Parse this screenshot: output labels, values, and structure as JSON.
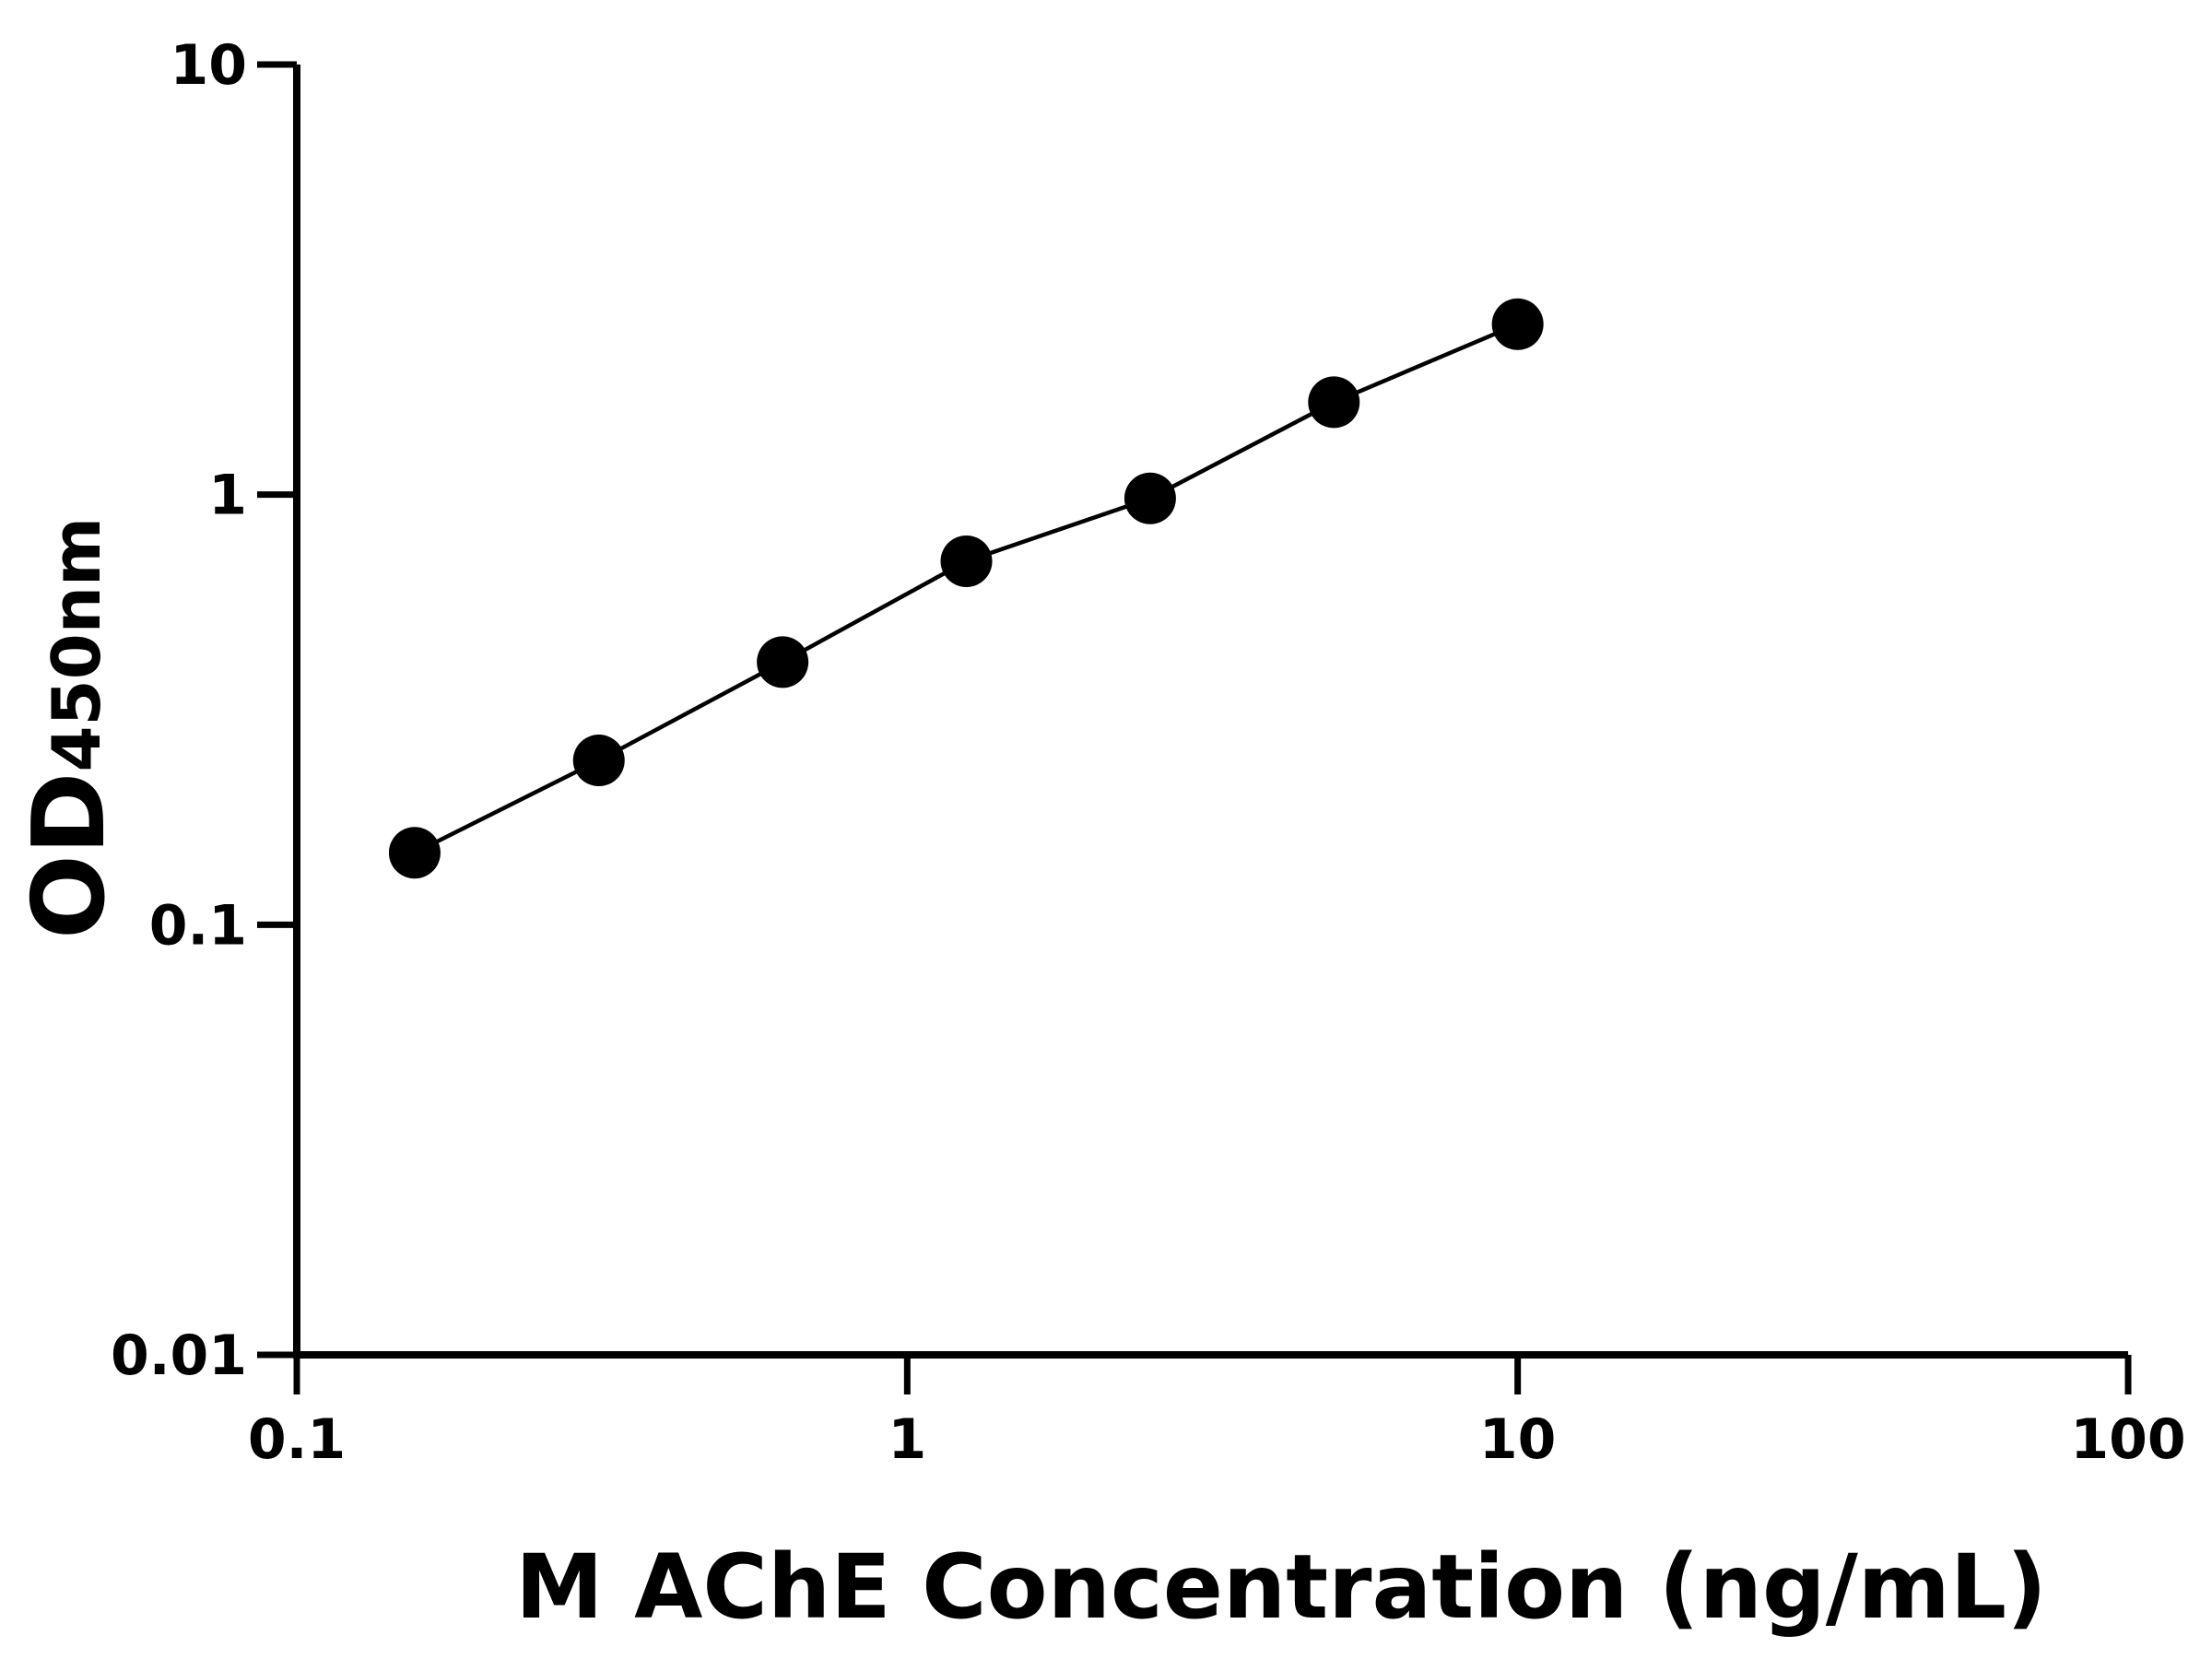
{
  "chart_data": {
    "type": "line",
    "xlabel": "M AChE Concentration (ng/mL)",
    "ylabel": "OD",
    "ylabel_subscript": "450nm",
    "x": [
      0.156,
      0.3125,
      0.625,
      1.25,
      2.5,
      5,
      10
    ],
    "series": [
      {
        "values": [
          0.147,
          0.241,
          0.408,
          0.7,
          0.98,
          1.64,
          2.49
        ],
        "color": "#000000"
      }
    ],
    "xscale": "log",
    "yscale": "log",
    "xlim": [
      0.1,
      100
    ],
    "ylim": [
      0.01,
      10
    ],
    "xticks": [
      0.1,
      1,
      10,
      100
    ],
    "yticks": [
      0.01,
      0.1,
      1,
      10
    ],
    "markers": true,
    "grid": false
  }
}
